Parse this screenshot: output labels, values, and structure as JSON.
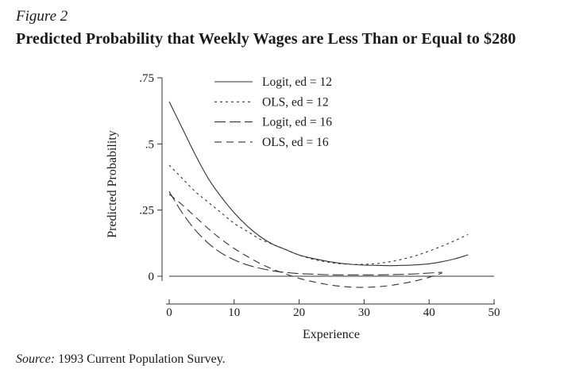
{
  "figure": {
    "label": "Figure 2",
    "title": "Predicted Probability that Weekly Wages are Less Than or Equal to $280",
    "source_label": "Source:",
    "source_text": " 1993 Current Population Survey."
  },
  "chart_data": {
    "type": "line",
    "xlabel": "Experience",
    "ylabel": "Predicted Probability",
    "xlim": [
      0,
      50
    ],
    "ylim": [
      0,
      0.75
    ],
    "grid": false,
    "legend_position": "top",
    "x_ticks": [
      {
        "value": 0,
        "label": "0"
      },
      {
        "value": 10,
        "label": "10"
      },
      {
        "value": 20,
        "label": "20"
      },
      {
        "value": 30,
        "label": "30"
      },
      {
        "value": 40,
        "label": "40"
      },
      {
        "value": 50,
        "label": "50"
      }
    ],
    "y_ticks": [
      {
        "value": 0,
        "label": "0"
      },
      {
        "value": 0.25,
        "label": ".25"
      },
      {
        "value": 0.5,
        "label": ".5"
      },
      {
        "value": 0.75,
        "label": ".75"
      }
    ],
    "zero_line": {
      "x": [
        0,
        50
      ],
      "y": [
        0,
        0
      ]
    },
    "series": [
      {
        "name": "Logit, ed = 12",
        "dash": "solid",
        "x": [
          0,
          2,
          4,
          6,
          8,
          10,
          12,
          14,
          16,
          18,
          20,
          22,
          24,
          26,
          28,
          30,
          32,
          34,
          36,
          38,
          40,
          42,
          44,
          46
        ],
        "y": [
          0.66,
          0.56,
          0.46,
          0.37,
          0.3,
          0.24,
          0.19,
          0.15,
          0.12,
          0.1,
          0.08,
          0.068,
          0.058,
          0.05,
          0.045,
          0.042,
          0.041,
          0.04,
          0.041,
          0.043,
          0.047,
          0.055,
          0.066,
          0.081
        ]
      },
      {
        "name": "OLS, ed = 12",
        "dash": "dotted",
        "x": [
          0,
          2,
          4,
          6,
          8,
          10,
          12,
          14,
          16,
          18,
          20,
          22,
          24,
          26,
          28,
          30,
          32,
          34,
          36,
          38,
          40,
          42,
          44,
          46
        ],
        "y": [
          0.42,
          0.37,
          0.32,
          0.28,
          0.24,
          0.2,
          0.17,
          0.14,
          0.12,
          0.1,
          0.08,
          0.065,
          0.055,
          0.048,
          0.045,
          0.045,
          0.048,
          0.055,
          0.065,
          0.078,
          0.095,
          0.114,
          0.135,
          0.158
        ]
      },
      {
        "name": "Logit, ed = 16",
        "dash": "long-dash",
        "x": [
          0,
          2,
          4,
          6,
          8,
          10,
          12,
          14,
          16,
          18,
          20,
          22,
          24,
          26,
          28,
          30,
          32,
          34,
          36,
          38,
          40,
          42
        ],
        "y": [
          0.32,
          0.24,
          0.175,
          0.125,
          0.088,
          0.062,
          0.043,
          0.03,
          0.02,
          0.014,
          0.01,
          0.008,
          0.006,
          0.005,
          0.005,
          0.005,
          0.005,
          0.006,
          0.007,
          0.009,
          0.012,
          0.015
        ]
      },
      {
        "name": "OLS, ed = 16",
        "dash": "dashed",
        "x": [
          0,
          2,
          4,
          6,
          8,
          10,
          12,
          14,
          16,
          18,
          20,
          22,
          24,
          26,
          28,
          30,
          32,
          34,
          36,
          38,
          40,
          42
        ],
        "y": [
          0.31,
          0.27,
          0.225,
          0.18,
          0.14,
          0.105,
          0.075,
          0.048,
          0.026,
          0.008,
          -0.008,
          -0.02,
          -0.03,
          -0.037,
          -0.041,
          -0.042,
          -0.04,
          -0.035,
          -0.027,
          -0.017,
          -0.004,
          0.012
        ]
      }
    ]
  }
}
